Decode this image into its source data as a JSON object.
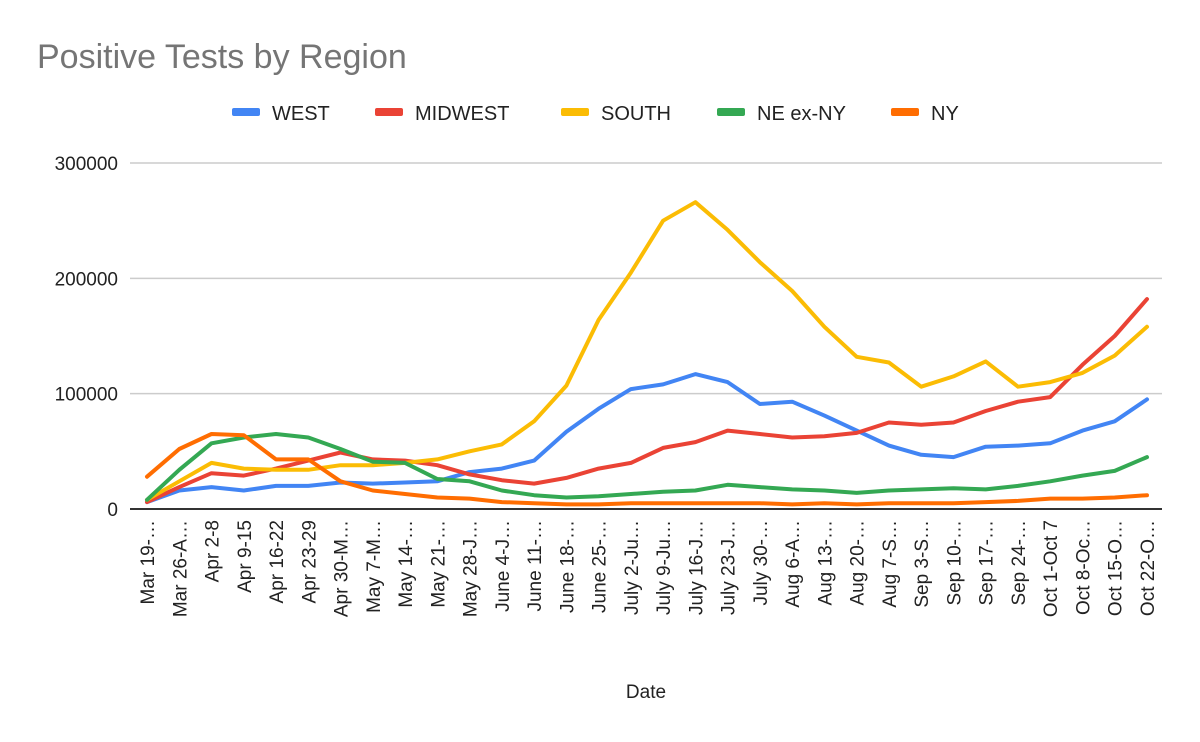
{
  "chart_data": {
    "type": "line",
    "title": "Positive Tests by Region",
    "xlabel": "Date",
    "ylabel": "",
    "ylim": [
      0,
      300000
    ],
    "yticks": [
      "0",
      "100000",
      "200000",
      "300000"
    ],
    "grid": true,
    "legend_position": "top",
    "categories": [
      "Mar 19-…",
      "Mar 26-A…",
      "Apr 2-8",
      "Apr 9-15",
      "Apr 16-22",
      "Apr 23-29",
      "Apr 30-M…",
      "May 7-M…",
      "May 14-…",
      "May 21-…",
      "May 28-J…",
      "June 4-J…",
      "June 11-…",
      "June 18-…",
      "June 25-…",
      "July 2-Ju…",
      "July 9-Ju…",
      "July 16-J…",
      "July 23-J…",
      "July 30-…",
      "Aug 6-A…",
      "Aug 13-…",
      "Aug 20-…",
      "Aug 7-S…",
      "Sep 3-S…",
      "Sep 10-…",
      "Sep 17-…",
      "Sep 24-…",
      "Oct 1-Oct 7",
      "Oct 8-Oc…",
      "Oct 15-O…",
      "Oct 22-O…"
    ],
    "series": [
      {
        "name": "WEST",
        "color": "#4285F4",
        "values": [
          6000,
          16000,
          19000,
          16000,
          20000,
          20000,
          23000,
          22000,
          23000,
          24000,
          32000,
          35000,
          42000,
          67000,
          87000,
          104000,
          108000,
          117000,
          110000,
          91000,
          93000,
          81000,
          68000,
          55000,
          47000,
          45000,
          54000,
          55000,
          57000,
          68000,
          76000,
          95000
        ]
      },
      {
        "name": "MIDWEST",
        "color": "#EA4335",
        "values": [
          6000,
          19000,
          31000,
          29000,
          35000,
          42000,
          49000,
          43000,
          42000,
          38000,
          30000,
          25000,
          22000,
          27000,
          35000,
          40000,
          53000,
          58000,
          68000,
          65000,
          62000,
          63000,
          66000,
          75000,
          73000,
          75000,
          85000,
          93000,
          97000,
          125000,
          150000,
          182000
        ]
      },
      {
        "name": "SOUTH",
        "color": "#FBBC04",
        "values": [
          8000,
          24000,
          40000,
          35000,
          34000,
          34000,
          38000,
          38000,
          40000,
          43000,
          50000,
          56000,
          76000,
          107000,
          164000,
          205000,
          250000,
          266000,
          242000,
          214000,
          189000,
          158000,
          132000,
          127000,
          106000,
          115000,
          128000,
          106000,
          110000,
          118000,
          133000,
          158000
        ]
      },
      {
        "name": "NE ex-NY",
        "color": "#34A853",
        "values": [
          8000,
          34000,
          57000,
          62000,
          65000,
          62000,
          52000,
          41000,
          40000,
          26000,
          24000,
          16000,
          12000,
          10000,
          11000,
          13000,
          15000,
          16000,
          21000,
          19000,
          17000,
          16000,
          14000,
          16000,
          17000,
          18000,
          17000,
          20000,
          24000,
          29000,
          33000,
          45000
        ]
      },
      {
        "name": "NY",
        "color": "#FF6D01",
        "values": [
          28000,
          52000,
          65000,
          64000,
          43000,
          43000,
          24000,
          16000,
          13000,
          10000,
          9000,
          6000,
          5000,
          4000,
          4000,
          5000,
          5000,
          5000,
          5000,
          5000,
          4000,
          5000,
          4000,
          5000,
          5000,
          5000,
          6000,
          7000,
          9000,
          9000,
          10000,
          12000
        ]
      }
    ]
  }
}
